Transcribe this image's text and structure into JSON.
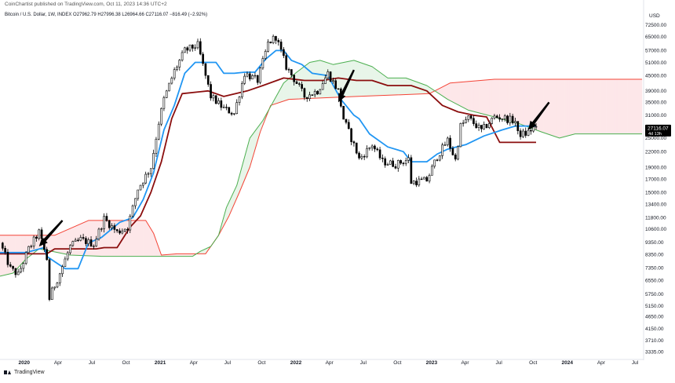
{
  "publisher_line": "CoinChartist published on TradingView.com, Oct 11, 2023 14:36 UTC+2",
  "footer": {
    "brand": "TradingView"
  },
  "colors": {
    "conversion_line": "#2196f3",
    "base_line": "#8b0e0e",
    "leading_span_a": "#4caf50",
    "leading_span_b": "#f44336",
    "bullish_cloud": "#e8f5e9",
    "bearish_cloud": "#fde7e9",
    "up_candle": "#ffffff",
    "down_candle": "#000000",
    "arrow": "#000000",
    "price_label_bg": "#000000"
  },
  "chart_data": {
    "type": "candlestick",
    "title": "Bitcoin / U.S. Dollar, 1W, INDEX",
    "ohlc_legend": {
      "open": "O27962.79",
      "high": "H27996.38",
      "low": "L26964.66",
      "close": "C27116.07",
      "change": "−816.49 (−2.92%)"
    },
    "currency": "USD",
    "last_price": "27116.07",
    "last_price_sublabel": "4d 13h",
    "y_scale": "log",
    "y_ticks": [
      72500,
      65000,
      57000,
      51000,
      45000,
      39000,
      35000,
      31000,
      25000,
      22000,
      19000,
      17000,
      15000,
      13400,
      11800,
      10600,
      9350,
      8350,
      7350,
      6550,
      5750,
      5150,
      4650,
      4150,
      3710,
      3335
    ],
    "y_tick_labels": [
      "72500.00",
      "65000.00",
      "57000.00",
      "51000.00",
      "45000.00",
      "39000.00",
      "35000.00",
      "31000.00",
      "25000.00",
      "22000.00",
      "19000.00",
      "17000.00",
      "15000.00",
      "13400.00",
      "11800.00",
      "10600.00",
      "9350.00",
      "8350.00",
      "7350.00",
      "6550.00",
      "5750.00",
      "5150.00",
      "4650.00",
      "4150.00",
      "3710.00",
      "3335.00"
    ],
    "x_ticks": [
      {
        "label": "2020",
        "date": "2020-01-01",
        "bold": true
      },
      {
        "label": "Apr",
        "date": "2020-04-01",
        "bold": false
      },
      {
        "label": "Jul",
        "date": "2020-07-01",
        "bold": false
      },
      {
        "label": "Oct",
        "date": "2020-10-01",
        "bold": false
      },
      {
        "label": "2021",
        "date": "2021-01-01",
        "bold": true
      },
      {
        "label": "Apr",
        "date": "2021-04-01",
        "bold": false
      },
      {
        "label": "Jul",
        "date": "2021-07-01",
        "bold": false
      },
      {
        "label": "Oct",
        "date": "2021-10-01",
        "bold": false
      },
      {
        "label": "2022",
        "date": "2022-01-01",
        "bold": true
      },
      {
        "label": "Apr",
        "date": "2022-04-01",
        "bold": false
      },
      {
        "label": "Jul",
        "date": "2022-07-01",
        "bold": false
      },
      {
        "label": "Oct",
        "date": "2022-10-01",
        "bold": false
      },
      {
        "label": "2023",
        "date": "2023-01-01",
        "bold": true
      },
      {
        "label": "Apr",
        "date": "2023-04-01",
        "bold": false
      },
      {
        "label": "Jul",
        "date": "2023-07-01",
        "bold": false
      },
      {
        "label": "Oct",
        "date": "2023-10-01",
        "bold": false
      },
      {
        "label": "2024",
        "date": "2024-01-01",
        "bold": true
      },
      {
        "label": "Apr",
        "date": "2024-04-01",
        "bold": false
      },
      {
        "label": "Jul",
        "date": "2024-07-01",
        "bold": false
      }
    ],
    "x_range": [
      "2019-10-28",
      "2024-07-20"
    ],
    "y_range": [
      3150,
      84000
    ],
    "grid": false,
    "price_path": [
      [
        "2019-10-28",
        9300
      ],
      [
        "2019-11-25",
        7300
      ],
      [
        "2019-12-16",
        6900
      ],
      [
        "2020-01-13",
        8800
      ],
      [
        "2020-02-10",
        10300
      ],
      [
        "2020-03-02",
        8000
      ],
      [
        "2020-03-09",
        5500
      ],
      [
        "2020-03-16",
        5900
      ],
      [
        "2020-04-06",
        7000
      ],
      [
        "2020-05-04",
        9000
      ],
      [
        "2020-06-01",
        9600
      ],
      [
        "2020-07-06",
        9200
      ],
      [
        "2020-08-03",
        11700
      ],
      [
        "2020-09-07",
        10300
      ],
      [
        "2020-10-05",
        10800
      ],
      [
        "2020-11-02",
        15500
      ],
      [
        "2020-12-07",
        19000
      ],
      [
        "2020-12-28",
        29000
      ],
      [
        "2021-01-11",
        36000
      ],
      [
        "2021-02-08",
        47000
      ],
      [
        "2021-03-08",
        57000
      ],
      [
        "2021-04-12",
        60000
      ],
      [
        "2021-05-17",
        37000
      ],
      [
        "2021-06-21",
        33000
      ],
      [
        "2021-07-19",
        31500
      ],
      [
        "2021-08-16",
        46000
      ],
      [
        "2021-09-20",
        43000
      ],
      [
        "2021-10-18",
        61000
      ],
      [
        "2021-11-08",
        65000
      ],
      [
        "2021-12-06",
        49000
      ],
      [
        "2022-01-03",
        42000
      ],
      [
        "2022-01-24",
        37000
      ],
      [
        "2022-02-28",
        39000
      ],
      [
        "2022-03-28",
        46000
      ],
      [
        "2022-04-25",
        39000
      ],
      [
        "2022-05-09",
        30000
      ],
      [
        "2022-06-13",
        22000
      ],
      [
        "2022-06-20",
        20500
      ],
      [
        "2022-07-25",
        23500
      ],
      [
        "2022-08-22",
        20000
      ],
      [
        "2022-09-26",
        19500
      ],
      [
        "2022-10-31",
        20500
      ],
      [
        "2022-11-07",
        16500
      ],
      [
        "2022-12-19",
        16800
      ],
      [
        "2023-01-16",
        21000
      ],
      [
        "2023-02-13",
        24500
      ],
      [
        "2023-03-06",
        20300
      ],
      [
        "2023-03-20",
        28000
      ],
      [
        "2023-04-10",
        30200
      ],
      [
        "2023-05-15",
        26800
      ],
      [
        "2023-06-19",
        30500
      ],
      [
        "2023-07-10",
        30300
      ],
      [
        "2023-08-14",
        29300
      ],
      [
        "2023-08-21",
        26000
      ],
      [
        "2023-09-11",
        26000
      ],
      [
        "2023-10-02",
        27500
      ],
      [
        "2023-10-09",
        27116
      ]
    ],
    "series": [
      {
        "key": "conversion_line",
        "points": [
          [
            "2019-10-28",
            8500
          ],
          [
            "2020-01-06",
            8500
          ],
          [
            "2020-02-24",
            8900
          ],
          [
            "2020-03-02",
            8200
          ],
          [
            "2020-03-23",
            7800
          ],
          [
            "2020-04-20",
            7300
          ],
          [
            "2020-05-25",
            7300
          ],
          [
            "2020-06-22",
            9300
          ],
          [
            "2020-07-27",
            9800
          ],
          [
            "2020-09-14",
            11300
          ],
          [
            "2020-10-19",
            11800
          ],
          [
            "2020-11-16",
            14000
          ],
          [
            "2020-12-14",
            18000
          ],
          [
            "2021-01-11",
            27000
          ],
          [
            "2021-02-08",
            34000
          ],
          [
            "2021-03-08",
            46000
          ],
          [
            "2021-04-05",
            51000
          ],
          [
            "2021-05-31",
            51000
          ],
          [
            "2021-06-21",
            46000
          ],
          [
            "2021-07-19",
            46000
          ],
          [
            "2021-08-16",
            46500
          ],
          [
            "2021-09-13",
            46500
          ],
          [
            "2021-10-11",
            52500
          ],
          [
            "2021-11-08",
            57000
          ],
          [
            "2021-11-29",
            57000
          ],
          [
            "2021-12-20",
            52000
          ],
          [
            "2022-01-17",
            50000
          ],
          [
            "2022-02-14",
            46000
          ],
          [
            "2022-03-28",
            45000
          ],
          [
            "2022-05-02",
            36000
          ],
          [
            "2022-06-06",
            31000
          ],
          [
            "2022-06-20",
            30000
          ],
          [
            "2022-07-18",
            26000
          ],
          [
            "2022-09-05",
            23000
          ],
          [
            "2022-10-17",
            22000
          ],
          [
            "2022-11-07",
            20000
          ],
          [
            "2022-12-19",
            20000
          ],
          [
            "2023-01-16",
            21500
          ],
          [
            "2023-02-13",
            22500
          ],
          [
            "2023-04-03",
            23500
          ],
          [
            "2023-05-22",
            25500
          ],
          [
            "2023-07-10",
            27000
          ],
          [
            "2023-08-14",
            28000
          ],
          [
            "2023-10-09",
            28000
          ]
        ]
      },
      {
        "key": "base_line",
        "points": [
          [
            "2019-10-28",
            8400
          ],
          [
            "2020-03-02",
            8400
          ],
          [
            "2020-03-23",
            8800
          ],
          [
            "2020-06-08",
            8800
          ],
          [
            "2020-07-13",
            8800
          ],
          [
            "2020-08-03",
            8900
          ],
          [
            "2020-09-07",
            8900
          ],
          [
            "2020-10-12",
            10800
          ],
          [
            "2020-11-09",
            12000
          ],
          [
            "2020-12-07",
            15000
          ],
          [
            "2021-01-04",
            20000
          ],
          [
            "2021-02-01",
            30000
          ],
          [
            "2021-03-01",
            38000
          ],
          [
            "2021-05-10",
            39000
          ],
          [
            "2021-06-21",
            37000
          ],
          [
            "2021-08-23",
            39000
          ],
          [
            "2021-10-04",
            41000
          ],
          [
            "2021-11-29",
            44000
          ],
          [
            "2022-01-24",
            43000
          ],
          [
            "2022-03-14",
            43000
          ],
          [
            "2022-04-25",
            44000
          ],
          [
            "2022-06-13",
            43000
          ],
          [
            "2022-07-25",
            43000
          ],
          [
            "2022-09-05",
            41000
          ],
          [
            "2022-11-07",
            41000
          ],
          [
            "2022-12-19",
            39000
          ],
          [
            "2023-01-30",
            34000
          ],
          [
            "2023-03-13",
            32000
          ],
          [
            "2023-04-24",
            31000
          ],
          [
            "2023-05-29",
            30500
          ],
          [
            "2023-07-03",
            24000
          ],
          [
            "2023-10-09",
            24000
          ]
        ]
      },
      {
        "key": "leading_span_a",
        "points": [
          [
            "2019-10-28",
            6800
          ],
          [
            "2019-12-02",
            7000
          ],
          [
            "2020-01-06",
            8000
          ],
          [
            "2020-02-10",
            8800
          ],
          [
            "2020-03-16",
            8600
          ],
          [
            "2020-05-04",
            8300
          ],
          [
            "2020-07-27",
            8200
          ],
          [
            "2020-11-30",
            8200
          ],
          [
            "2021-03-29",
            8200
          ],
          [
            "2021-04-19",
            8600
          ],
          [
            "2021-05-17",
            9000
          ],
          [
            "2021-06-07",
            10000
          ],
          [
            "2021-06-28",
            13000
          ],
          [
            "2021-07-26",
            16000
          ],
          [
            "2021-08-30",
            25000
          ],
          [
            "2021-10-04",
            29500
          ],
          [
            "2021-11-29",
            42000
          ],
          [
            "2022-01-03",
            46500
          ],
          [
            "2022-02-07",
            51000
          ],
          [
            "2022-03-07",
            52000
          ],
          [
            "2022-04-11",
            50000
          ],
          [
            "2022-06-06",
            52000
          ],
          [
            "2022-07-25",
            49000
          ],
          [
            "2022-09-05",
            44000
          ],
          [
            "2022-10-24",
            44000
          ],
          [
            "2022-12-19",
            41000
          ],
          [
            "2023-02-13",
            36000
          ],
          [
            "2023-04-10",
            32500
          ],
          [
            "2023-06-19",
            30500
          ],
          [
            "2023-08-28",
            28500
          ],
          [
            "2023-10-23",
            26500
          ],
          [
            "2023-12-11",
            25000
          ],
          [
            "2024-01-22",
            26000
          ],
          [
            "2024-07-20",
            26000
          ]
        ]
      },
      {
        "key": "leading_span_b",
        "points": [
          [
            "2019-10-28",
            10000
          ],
          [
            "2020-03-23",
            10000
          ],
          [
            "2020-06-22",
            11500
          ],
          [
            "2020-11-23",
            11500
          ],
          [
            "2020-12-14",
            10200
          ],
          [
            "2021-01-04",
            8300
          ],
          [
            "2021-02-15",
            8400
          ],
          [
            "2021-05-03",
            8400
          ],
          [
            "2021-06-07",
            10000
          ],
          [
            "2021-07-05",
            12000
          ],
          [
            "2021-08-02",
            15000
          ],
          [
            "2021-08-30",
            19000
          ],
          [
            "2021-09-27",
            26500
          ],
          [
            "2021-10-25",
            34000
          ],
          [
            "2021-12-13",
            36000
          ],
          [
            "2022-06-13",
            37000
          ],
          [
            "2022-12-26",
            38000
          ],
          [
            "2023-02-20",
            42000
          ],
          [
            "2023-06-19",
            43500
          ],
          [
            "2024-07-20",
            43500
          ]
        ]
      }
    ],
    "arrows": [
      {
        "from": [
          "2020-04-13",
          11500
        ],
        "to": [
          "2020-02-10",
          9000
        ]
      },
      {
        "from": [
          "2022-06-06",
          47500
        ],
        "to": [
          "2022-04-25",
          35000
        ]
      },
      {
        "from": [
          "2023-11-13",
          35000
        ],
        "to": [
          "2023-09-18",
          27000
        ]
      }
    ]
  }
}
